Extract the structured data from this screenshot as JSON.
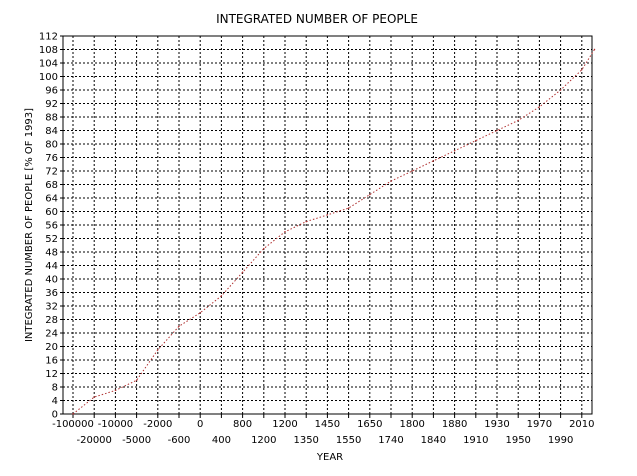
{
  "chart_data": {
    "type": "line",
    "title": "INTEGRATED NUMBER OF PEOPLE",
    "xlabel": "YEAR",
    "ylabel": "INTEGRATED NUMBER OF PEOPLE  [% OF 1993]",
    "ylim": [
      0,
      112
    ],
    "y_tick_step": 4,
    "grid": true,
    "x_scale": "categorical-nonuniform",
    "x_tick_labels_upper": [
      "-100000",
      "-10000",
      "-2000",
      "0",
      "800",
      "1200",
      "1350",
      "1550",
      "1740",
      "1840",
      "1910",
      "1950",
      "1990"
    ],
    "x_tick_labels_lower": [
      "-20000",
      "-5000",
      "-600",
      "400",
      "1200",
      "1450",
      "1650",
      "1800",
      "1880",
      "1930",
      "1970",
      "2010"
    ],
    "x_tick_labels_ordered": [
      "-100000",
      "-20000",
      "-10000",
      "-5000",
      "-2000",
      "-600",
      "0",
      "400",
      "800",
      "1200",
      "1200",
      "1350",
      "1450",
      "1550",
      "1650",
      "1740",
      "1800",
      "1840",
      "1880",
      "1910",
      "1930",
      "1950",
      "1970",
      "1990",
      "2010"
    ],
    "series": [
      {
        "color": "#b03030",
        "style": "dotted",
        "x_index": [
          0,
          1,
          2,
          3,
          4,
          5,
          6,
          7,
          8,
          9,
          10,
          11,
          12,
          13,
          14,
          15,
          16,
          17,
          18,
          19,
          20,
          21,
          22,
          23,
          24,
          24.6
        ],
        "values": [
          0,
          5,
          7,
          10,
          19,
          26,
          30,
          35,
          42,
          49,
          54,
          57,
          59,
          61,
          65,
          69,
          72,
          75,
          78,
          81,
          84,
          87,
          91,
          96,
          102,
          108
        ]
      }
    ]
  }
}
